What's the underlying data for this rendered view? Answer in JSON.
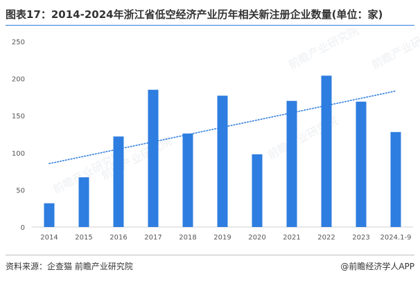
{
  "title": "图表17：2014-2024年浙江省低空经济产业历年相关新注册企业数量(单位：家)",
  "source": "资料来源：企查猫 前瞻产业研究院",
  "brand": "@前瞻经济学人APP",
  "watermark": "前瞻产业研究院",
  "colors": {
    "bar": "#2e7de0",
    "trend": "#2e7de0",
    "accent": "#2e7de0"
  },
  "chart_data": {
    "type": "bar",
    "categories": [
      "2014",
      "2015",
      "2016",
      "2017",
      "2018",
      "2019",
      "2020",
      "2021",
      "2022",
      "2023",
      "2024.1-9"
    ],
    "values": [
      32,
      67,
      122,
      185,
      126,
      177,
      98,
      170,
      204,
      169,
      128
    ],
    "trendline": {
      "type": "linear",
      "style": "dotted"
    },
    "title": "",
    "xlabel": "",
    "ylabel": "",
    "ylim": [
      0,
      250
    ],
    "yticks": [
      0,
      50,
      100,
      150,
      200,
      250
    ],
    "grid": false,
    "legend": "none"
  }
}
